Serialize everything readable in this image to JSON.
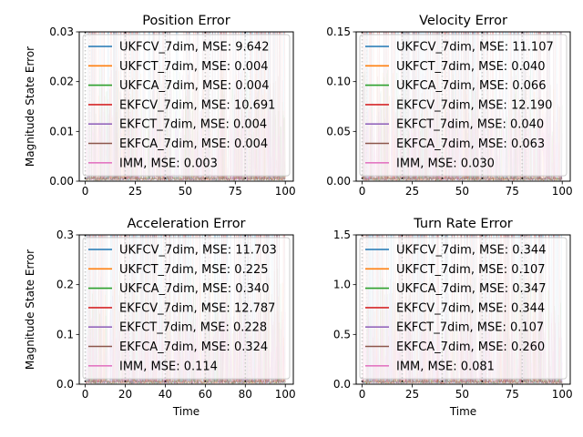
{
  "chart_data": [
    {
      "type": "line",
      "title": "Position Error",
      "xlabel": "",
      "ylabel": "Magnitude State Error",
      "xlim": [
        -3,
        104
      ],
      "ylim": [
        0,
        0.03
      ],
      "xticks": [
        0,
        25,
        50,
        75,
        100
      ],
      "yticks": [
        0.0,
        0.01,
        0.02,
        0.03
      ],
      "ytick_labels": [
        "0.00",
        "0.01",
        "0.02",
        "0.03"
      ],
      "switch_times": [
        0,
        20,
        40,
        60,
        80
      ],
      "legend": "upper-left",
      "series": [
        {
          "name": "UKFCV_7dim, MSE: 9.642",
          "color": "#1f77b4"
        },
        {
          "name": "UKFCT_7dim, MSE: 0.004",
          "color": "#ff7f0e"
        },
        {
          "name": "UKFCA_7dim, MSE: 0.004",
          "color": "#2ca02c"
        },
        {
          "name": "EKFCV_7dim, MSE: 10.691",
          "color": "#d62728"
        },
        {
          "name": "EKFCT_7dim, MSE: 0.004",
          "color": "#9467bd"
        },
        {
          "name": "EKFCA_7dim, MSE: 0.004",
          "color": "#8c564b"
        },
        {
          "name": "IMM, MSE: 0.003",
          "color": "#e377c2"
        }
      ]
    },
    {
      "type": "line",
      "title": "Velocity Error",
      "xlabel": "",
      "ylabel": "",
      "xlim": [
        -3,
        104
      ],
      "ylim": [
        0,
        0.15
      ],
      "xticks": [
        0,
        25,
        50,
        75,
        100
      ],
      "yticks": [
        0.0,
        0.05,
        0.1,
        0.15
      ],
      "ytick_labels": [
        "0.00",
        "0.05",
        "0.10",
        "0.15"
      ],
      "switch_times": [
        0,
        20,
        40,
        60,
        80
      ],
      "legend": "upper-left",
      "series": [
        {
          "name": "UKFCV_7dim, MSE: 11.107",
          "color": "#1f77b4"
        },
        {
          "name": "UKFCT_7dim, MSE: 0.040",
          "color": "#ff7f0e"
        },
        {
          "name": "UKFCA_7dim, MSE: 0.066",
          "color": "#2ca02c"
        },
        {
          "name": "EKFCV_7dim, MSE: 12.190",
          "color": "#d62728"
        },
        {
          "name": "EKFCT_7dim, MSE: 0.040",
          "color": "#9467bd"
        },
        {
          "name": "EKFCA_7dim, MSE: 0.063",
          "color": "#8c564b"
        },
        {
          "name": "IMM, MSE: 0.030",
          "color": "#e377c2"
        }
      ]
    },
    {
      "type": "line",
      "title": "Acceleration Error",
      "xlabel": "Time",
      "ylabel": "Magnitude State Error",
      "xlim": [
        -3,
        104
      ],
      "ylim": [
        0,
        0.3
      ],
      "xticks": [
        0,
        20,
        40,
        60,
        80,
        100
      ],
      "yticks": [
        0.0,
        0.1,
        0.2,
        0.3
      ],
      "ytick_labels": [
        "0.0",
        "0.1",
        "0.2",
        "0.3"
      ],
      "switch_times": [
        0,
        20,
        40,
        60,
        80
      ],
      "legend": "upper-left",
      "series": [
        {
          "name": "UKFCV_7dim, MSE: 11.703",
          "color": "#1f77b4"
        },
        {
          "name": "UKFCT_7dim, MSE: 0.225",
          "color": "#ff7f0e"
        },
        {
          "name": "UKFCA_7dim, MSE: 0.340",
          "color": "#2ca02c"
        },
        {
          "name": "EKFCV_7dim, MSE: 12.787",
          "color": "#d62728"
        },
        {
          "name": "EKFCT_7dim, MSE: 0.228",
          "color": "#9467bd"
        },
        {
          "name": "EKFCA_7dim, MSE: 0.324",
          "color": "#8c564b"
        },
        {
          "name": "IMM, MSE: 0.114",
          "color": "#e377c2"
        }
      ]
    },
    {
      "type": "line",
      "title": "Turn Rate Error",
      "xlabel": "Time",
      "ylabel": "",
      "xlim": [
        -3,
        104
      ],
      "ylim": [
        0,
        1.5
      ],
      "xticks": [
        0,
        25,
        50,
        75,
        100
      ],
      "yticks": [
        0.0,
        0.5,
        1.0,
        1.5
      ],
      "ytick_labels": [
        "0.0",
        "0.5",
        "1.0",
        "1.5"
      ],
      "switch_times": [
        0,
        20,
        40,
        60,
        80
      ],
      "legend": "upper-left",
      "series": [
        {
          "name": "UKFCV_7dim, MSE: 0.344",
          "color": "#1f77b4"
        },
        {
          "name": "UKFCT_7dim, MSE: 0.107",
          "color": "#ff7f0e"
        },
        {
          "name": "UKFCA_7dim, MSE: 0.347",
          "color": "#2ca02c"
        },
        {
          "name": "EKFCV_7dim, MSE: 0.344",
          "color": "#d62728"
        },
        {
          "name": "EKFCT_7dim, MSE: 0.107",
          "color": "#9467bd"
        },
        {
          "name": "EKFCA_7dim, MSE: 0.260",
          "color": "#8c564b"
        },
        {
          "name": "IMM, MSE: 0.081",
          "color": "#e377c2"
        }
      ]
    }
  ]
}
